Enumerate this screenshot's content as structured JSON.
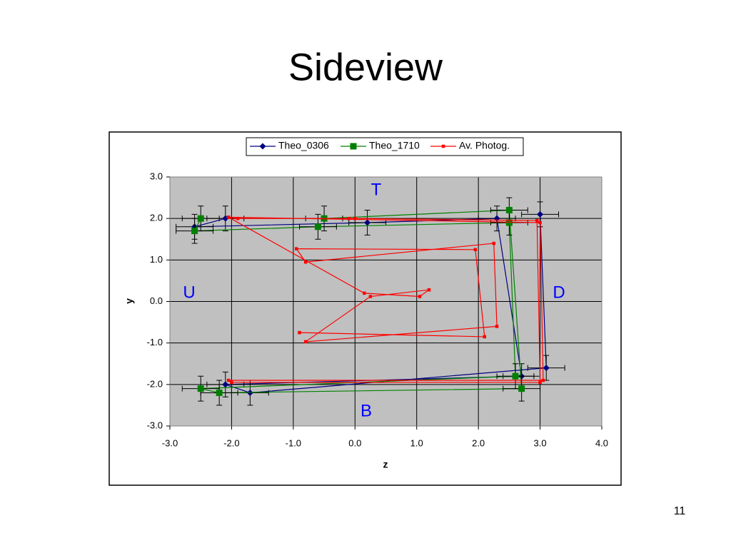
{
  "slide_title": "Sideview",
  "page_number": "11",
  "chart_data": {
    "type": "line",
    "xlabel": "z",
    "ylabel": "y",
    "xlim": [
      -3,
      4
    ],
    "ylim": [
      -3,
      3
    ],
    "xticks": [
      {
        "value": -3,
        "label": "-3.0"
      },
      {
        "value": -2,
        "label": "-2.0"
      },
      {
        "value": -1,
        "label": "-1.0"
      },
      {
        "value": 0,
        "label": "0.0"
      },
      {
        "value": 1,
        "label": "1.0"
      },
      {
        "value": 2,
        "label": "2.0"
      },
      {
        "value": 3,
        "label": "3.0"
      },
      {
        "value": 4,
        "label": "4.0"
      }
    ],
    "yticks": [
      {
        "value": -3,
        "label": "-3.0"
      },
      {
        "value": -2,
        "label": "-2.0"
      },
      {
        "value": -1,
        "label": "-1.0"
      },
      {
        "value": 0,
        "label": "0.0"
      },
      {
        "value": 1,
        "label": "1.0"
      },
      {
        "value": 2,
        "label": "2.0"
      },
      {
        "value": 3,
        "label": "3.0"
      }
    ],
    "grid": true,
    "annotations": [
      "T",
      "U",
      "D",
      "B"
    ],
    "series": [
      {
        "name": "Theo_0306",
        "color": "#000080",
        "marker": "diamond",
        "x": [
          -2.1,
          -2.6,
          0.2,
          2.3,
          2.7,
          -2.1,
          -1.7,
          3.1,
          3.0
        ],
        "y": [
          2.0,
          1.8,
          1.9,
          2.0,
          -1.8,
          -2.0,
          -2.2,
          -1.6,
          2.1
        ],
        "xerr": 0.3,
        "yerr": 0.3
      },
      {
        "name": "Theo_1710",
        "color": "#008000",
        "marker": "square",
        "x": [
          -2.5,
          -2.6,
          -0.6,
          2.5,
          2.6,
          -2.5,
          -2.2,
          2.7,
          2.5,
          -0.5
        ],
        "y": [
          2.0,
          1.7,
          1.8,
          1.9,
          -1.8,
          -2.1,
          -2.2,
          -2.1,
          2.2,
          2.0
        ],
        "xerr": 0.3,
        "yerr": 0.3
      },
      {
        "name": "Av. Photog.",
        "color": "#ff0000",
        "marker": "small-square",
        "x": [
          -2.05,
          -1.9,
          -0.1,
          0.0,
          2.95,
          3.0,
          -2.0,
          -2.05,
          3.05,
          3.0,
          -2.05,
          0.15,
          1.05,
          1.2,
          0.25,
          -0.8,
          2.3,
          2.25,
          -0.8,
          -0.95,
          1.95,
          2.1,
          -0.9
        ],
        "y": [
          2.03,
          2.0,
          2.0,
          2.0,
          1.95,
          -1.95,
          -1.95,
          -1.9,
          -1.9,
          1.9,
          2.03,
          0.2,
          0.12,
          0.28,
          0.12,
          -0.97,
          -0.6,
          1.4,
          0.95,
          1.27,
          1.25,
          -0.85,
          -0.75
        ]
      }
    ]
  }
}
